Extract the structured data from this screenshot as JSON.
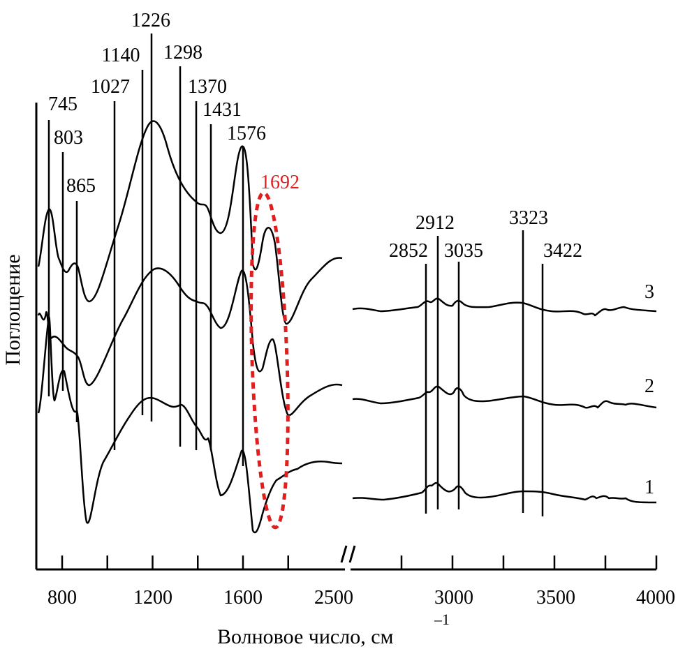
{
  "chart_data": {
    "type": "line",
    "title": "",
    "ylabel": "Поглощение",
    "xlabel": "Волновое число, см",
    "xlabel_superscript": "–1",
    "panels": [
      {
        "name": "left",
        "xlim": [
          700,
          2500
        ],
        "tick_labels": [
          "800",
          "1200",
          "1600",
          "2500"
        ]
      },
      {
        "name": "right",
        "xlim": [
          2500,
          4000
        ],
        "tick_labels": [
          "2500",
          "3000",
          "3500",
          "4000"
        ]
      }
    ],
    "left_peaks": [
      "745",
      "803",
      "865",
      "1027",
      "1140",
      "1226",
      "1298",
      "1370",
      "1431",
      "1576"
    ],
    "highlighted_peak": {
      "label": "1692",
      "color": "#e02020"
    },
    "right_peaks": [
      "2852",
      "2912",
      "3035",
      "3323",
      "3422"
    ],
    "series": [
      {
        "name": "1",
        "label": "1"
      },
      {
        "name": "2",
        "label": "2"
      },
      {
        "name": "3",
        "label": "3"
      }
    ],
    "grid": false,
    "legend": "curve numbers at right end"
  }
}
